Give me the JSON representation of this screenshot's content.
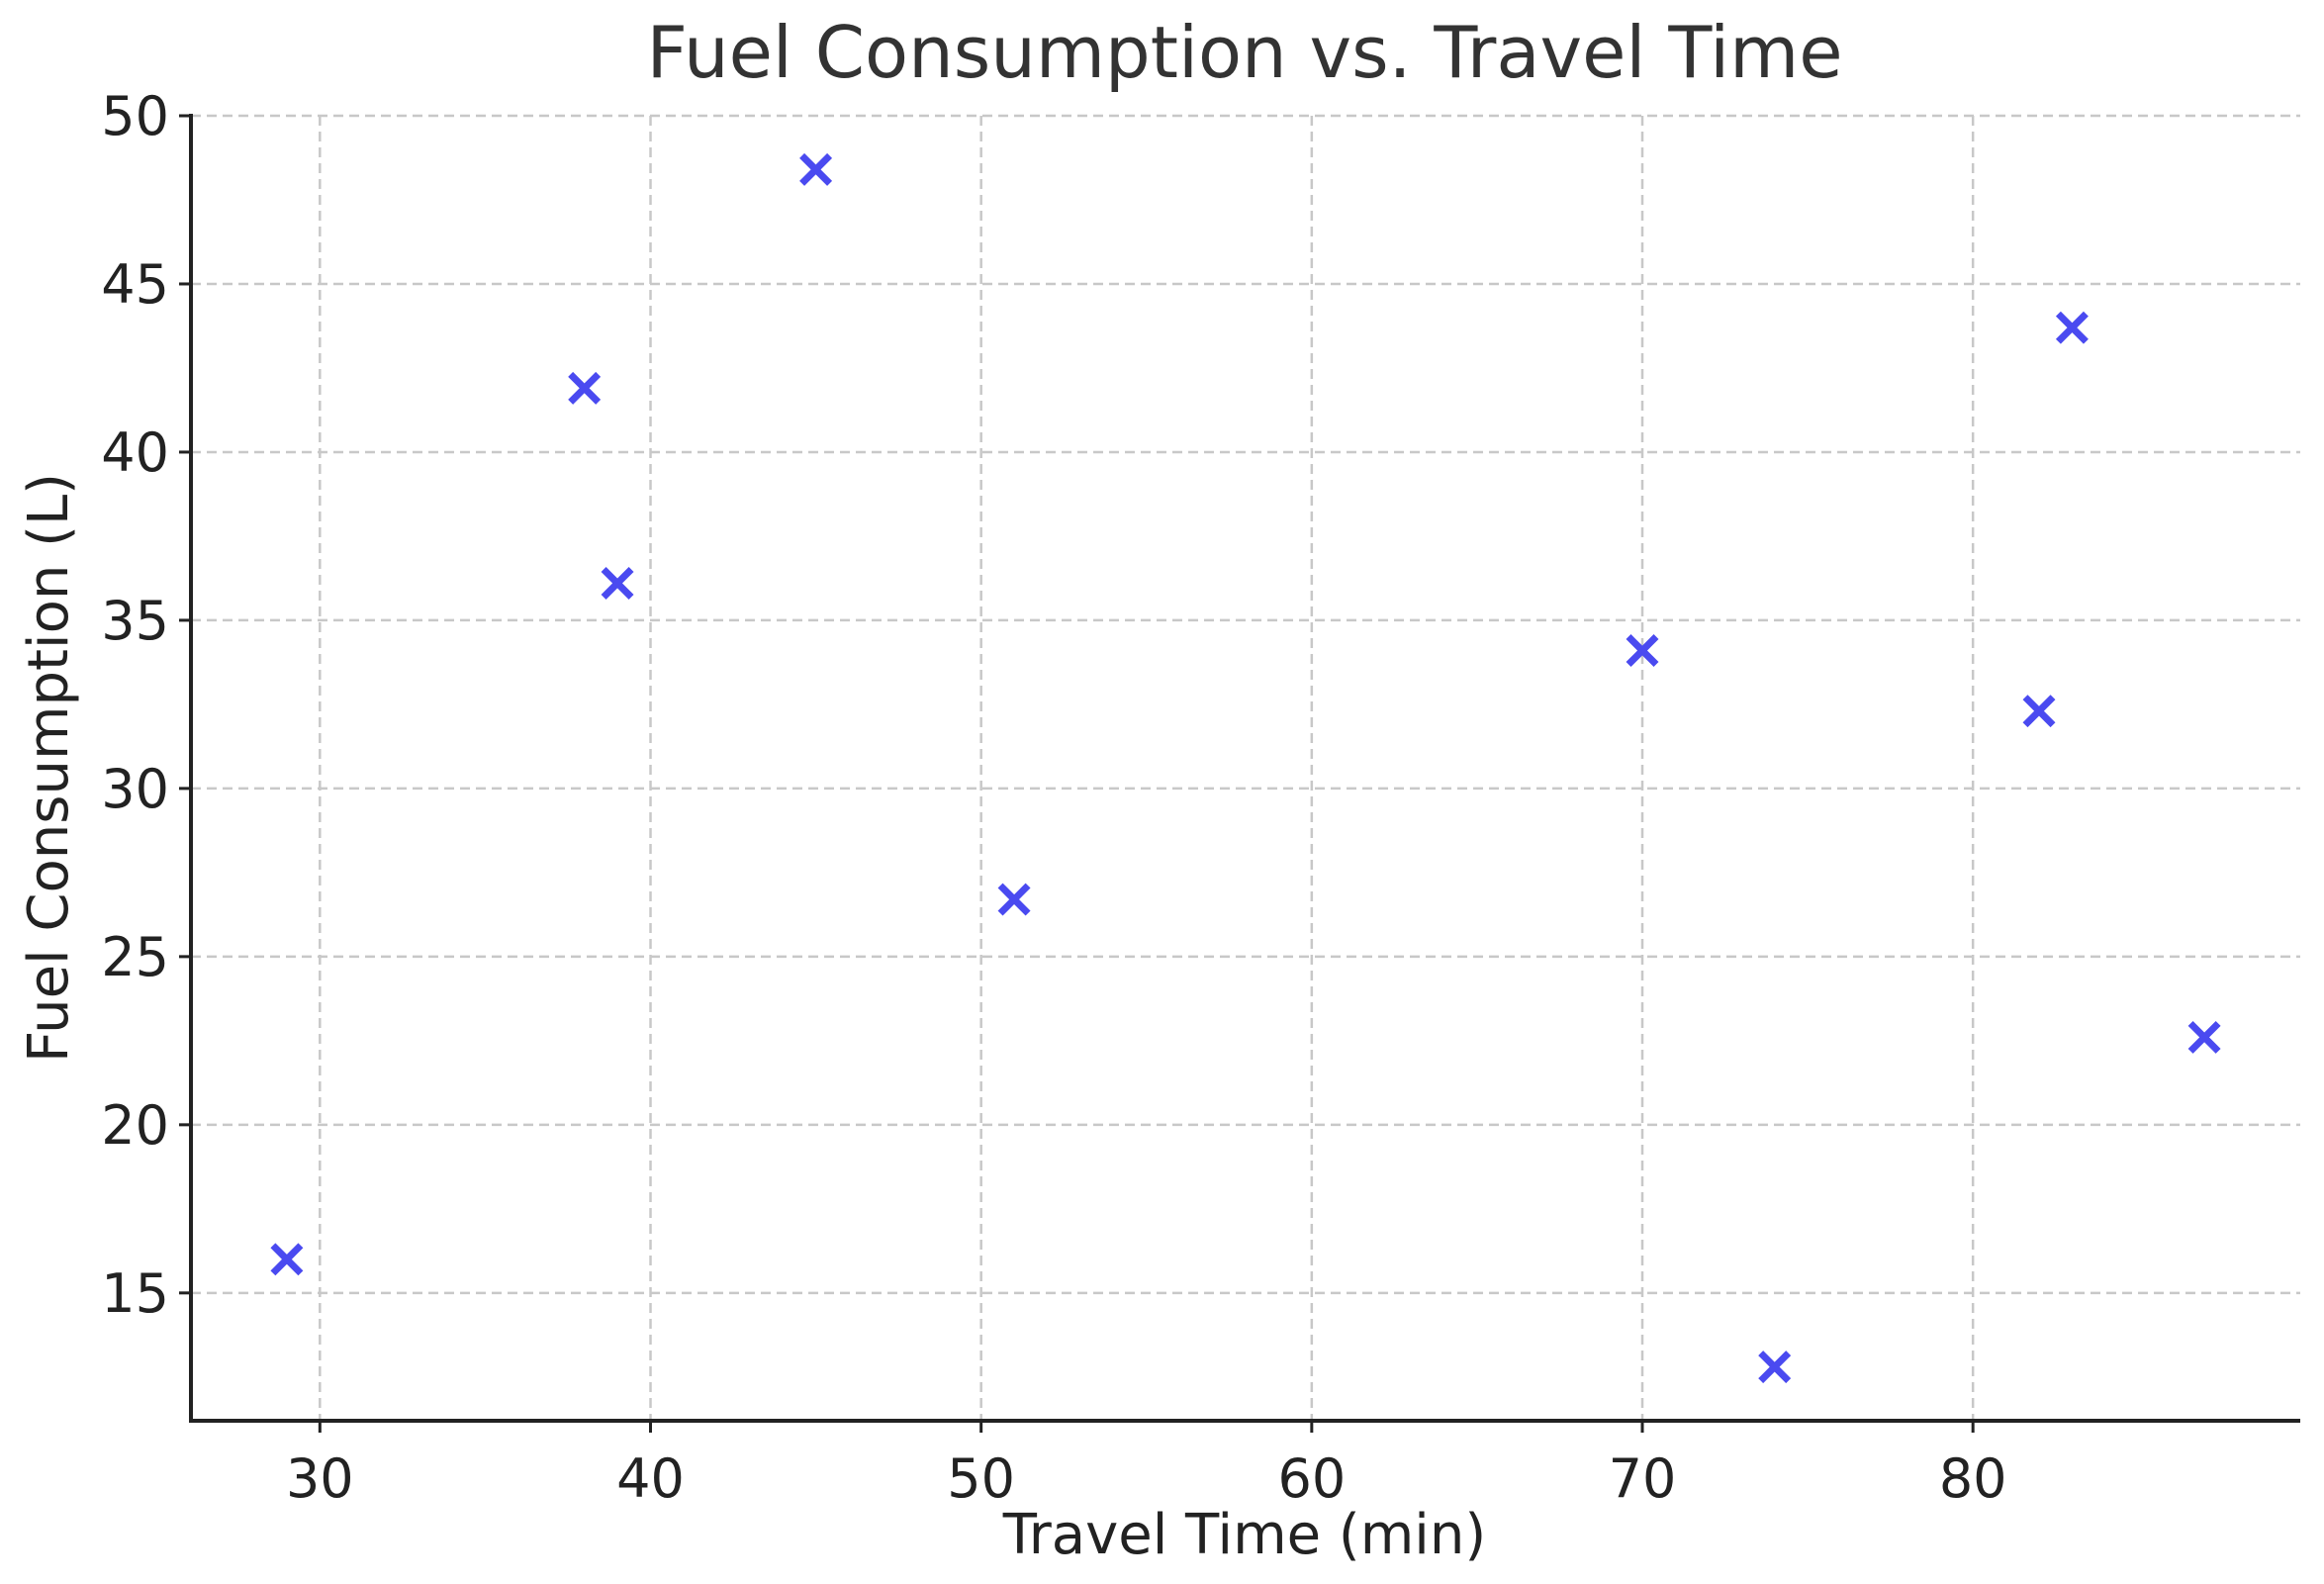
{
  "chart_data": {
    "type": "scatter",
    "title": "Fuel Consumption vs. Travel Time",
    "xlabel": "Travel Time (min)",
    "ylabel": "Fuel Consumption (L)",
    "xlim": [
      26.1,
      89.9
    ],
    "ylim": [
      11.2,
      50.0
    ],
    "xticks": [
      30,
      40,
      50,
      60,
      70,
      80
    ],
    "yticks": [
      15,
      20,
      25,
      30,
      35,
      40,
      45,
      50
    ],
    "grid": true,
    "marker": "x",
    "color": "#4a4af0",
    "series": [
      {
        "x": [
          29,
          38,
          39,
          45,
          51,
          70,
          74,
          82,
          83,
          87
        ],
        "y": [
          16.0,
          41.9,
          36.1,
          48.4,
          26.7,
          34.1,
          12.8,
          32.3,
          43.7,
          22.6
        ]
      }
    ]
  }
}
